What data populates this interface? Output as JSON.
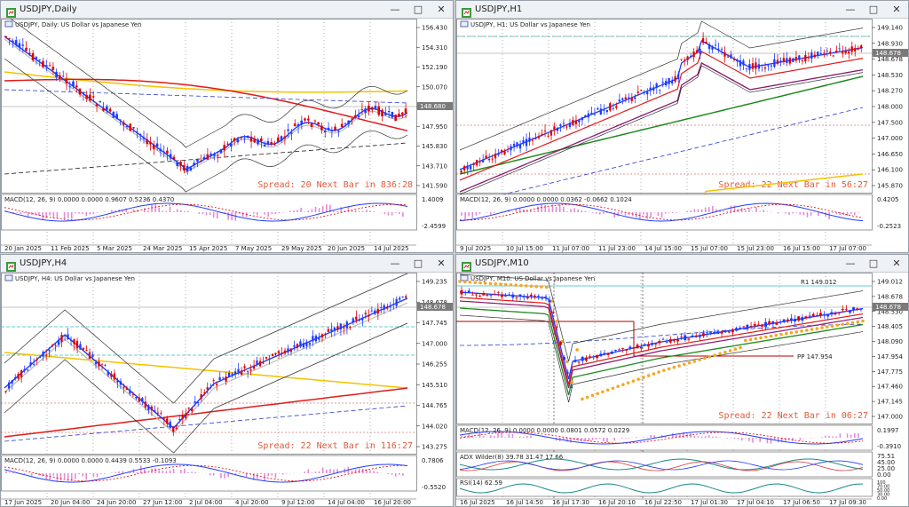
{
  "colors": {
    "up": "#1e3cff",
    "down": "#e00000",
    "ma_red": "#e21a1a",
    "ma_yellow": "#f4c200",
    "ma_green": "#1f8a1f",
    "ma_purple": "#8a1a6e",
    "bb": "#333333",
    "blue_dash": "#2a3cd8",
    "macd_hist": "#e28ad9",
    "spread": "#e05a3a",
    "psar": "#f5a623",
    "pp": "#b00000"
  },
  "windows": [
    {
      "id": "daily",
      "title": "USDJPY,Daily",
      "subtitle": "USDJPY, Daily:  US Dollar vs Japanese Yen",
      "spread_text": "Spread: 20  Next Bar in 836:28",
      "macd_label": "MACD(12, 26, 9) 0.0000 0.0000 0.9607 0.5236 0.4370",
      "price_labels": [
        "156.430",
        "154.310",
        "152.190",
        "150.070",
        "148.680",
        "147.950",
        "145.830",
        "143.710",
        "141.590"
      ],
      "current_price": "148.680",
      "macd_labels": [
        "1.4009",
        "-2.4599"
      ],
      "time_labels": [
        "20 Jan 2025",
        "11 Feb 2025",
        "5 Mar 2025",
        "24 Mar 2025",
        "15 Apr 2025",
        "7 May 2025",
        "29 May 2025",
        "20 Jun 2025",
        "14 Jul 2025"
      ],
      "buttons": {
        "min": "—",
        "max": "□",
        "close": "✕"
      }
    },
    {
      "id": "h1",
      "title": "USDJPY,H1",
      "subtitle": "USDJPY, H1:  US Dollar vs Japanese Yen",
      "spread_text": "Spread: 22  Next Bar in 56:27",
      "macd_label": "MACD(12, 26, 9) 0.0000 0.0000 0.0362 -0.0662 0.1024",
      "price_labels": [
        "149.140",
        "148.930",
        "148.678",
        "148.530",
        "148.270",
        "148.000",
        "147.500",
        "147.000",
        "146.650",
        "146.100",
        "145.870"
      ],
      "current_price": "148.678",
      "macd_labels": [
        "0.4205",
        "-0.2523"
      ],
      "time_labels": [
        "9 Jul 2025",
        "10 Jul 15:00",
        "11 Jul 07:00",
        "11 Jul 23:00",
        "14 Jul 15:00",
        "15 Jul 07:00",
        "15 Jul 23:00",
        "16 Jul 15:00",
        "17 Jul 07:00"
      ],
      "buttons": {
        "min": "—",
        "max": "□",
        "close": "✕"
      }
    },
    {
      "id": "h4",
      "title": "USDJPY,H4",
      "subtitle": "USDJPY, H4:  US Dollar vs Japanese Yen",
      "spread_text": "Spread: 22  Next Bar in 116:27",
      "macd_label": "MACD(12, 26, 9) 0.0000 0.0000 0.4439 0.5533 -0.1093",
      "price_labels": [
        "149.235",
        "148.678",
        "147.745",
        "147.000",
        "146.255",
        "145.510",
        "144.765",
        "144.020",
        "143.275"
      ],
      "current_price": "148.678",
      "macd_labels": [
        "0.7806",
        "-0.5520"
      ],
      "time_labels": [
        "17 Jun 2025",
        "20 Jun 04:00",
        "24 Jun 20:00",
        "27 Jun 12:00",
        "2 Jul 04:00",
        "4 Jul 20:00",
        "9 Jul 12:00",
        "14 Jul 04:00",
        "16 Jul 20:00"
      ],
      "buttons": {
        "min": "—",
        "max": "□",
        "close": "✕"
      }
    },
    {
      "id": "m10",
      "title": "USDJPY,M10",
      "subtitle": "USDJPY, M10:  US Dollar vs Japanese Yen",
      "spread_text": "Spread: 22  Next Bar in 06:27",
      "pp_label": "PP 147.954",
      "r1_label": "R1 149.012",
      "macd_label": "MACD(12, 26, 9) 0.0000 0.0000 0.0801 0.0572 0.0229",
      "adx_label": "ADX Wilder(8) 39.78 31.47 17.66",
      "rsi_label": "RSI(14) 62.59",
      "price_labels": [
        "149.012",
        "148.678",
        "148.530",
        "148.405",
        "148.090",
        "147.954",
        "147.775",
        "147.460",
        "147.145",
        "147.000"
      ],
      "current_price": "148.678",
      "macd_labels": [
        "0.1997",
        "-0.3910"
      ],
      "adx_labels": [
        "75.51",
        "45.00",
        "25.00",
        "0.00"
      ],
      "rsi_labels": [
        "100",
        "70.00",
        "50.00",
        "30.00",
        "0.00"
      ],
      "time_labels": [
        "16 Jul 2025",
        "16 Jul 14:50",
        "16 Jul 17:30",
        "16 Jul 20:10",
        "16 Jul 22:50",
        "17 Jul 01:30",
        "17 Jul 04:10",
        "17 Jul 06:50",
        "17 Jul 09:30"
      ],
      "buttons": {
        "min": "—",
        "max": "□",
        "close": "✕"
      }
    }
  ]
}
